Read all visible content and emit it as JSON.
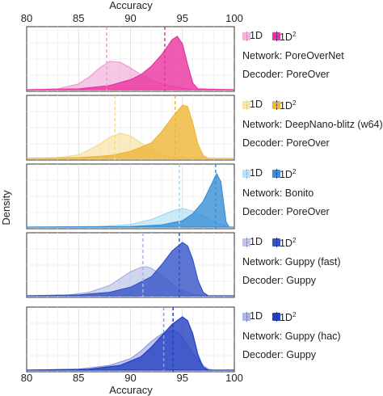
{
  "chart_data": {
    "type": "area",
    "x_axis": {
      "label": "Accuracy",
      "ticks": [
        80,
        85,
        90,
        95,
        100
      ],
      "range": [
        80,
        100
      ]
    },
    "y_axis": {
      "label": "Density"
    },
    "legend_labels": {
      "one_d": "1D",
      "one_d2_base": "1D",
      "one_d2_sup": "2"
    },
    "panels": [
      {
        "network_line": "Network: PoreOverNet",
        "decoder_line": "Decoder: PoreOver",
        "color_light": "#f19ad0",
        "color_dark": "#e8339e",
        "series": [
          {
            "name": "1D",
            "mean": 87.7,
            "points": [
              [
                80,
                0
              ],
              [
                83,
                0.01
              ],
              [
                85,
                0.07
              ],
              [
                86,
                0.15
              ],
              [
                87,
                0.26
              ],
              [
                88,
                0.34
              ],
              [
                89,
                0.33
              ],
              [
                90,
                0.26
              ],
              [
                91,
                0.18
              ],
              [
                92,
                0.12
              ],
              [
                93,
                0.07
              ],
              [
                94,
                0.04
              ],
              [
                95,
                0.02
              ],
              [
                96,
                0
              ],
              [
                100,
                0
              ]
            ]
          },
          {
            "name": "1D2",
            "mean": 93.3,
            "points": [
              [
                80,
                0
              ],
              [
                85,
                0.01
              ],
              [
                88,
                0.05
              ],
              [
                90,
                0.12
              ],
              [
                91,
                0.18
              ],
              [
                92,
                0.28
              ],
              [
                93,
                0.42
              ],
              [
                94,
                0.6
              ],
              [
                94.5,
                0.64
              ],
              [
                95,
                0.55
              ],
              [
                95.5,
                0.3
              ],
              [
                96,
                0.08
              ],
              [
                96.5,
                0.01
              ],
              [
                100,
                0
              ]
            ]
          }
        ]
      },
      {
        "network_line": "Network: DeepNano-blitz (w64)",
        "decoder_line": "Decoder: PoreOver",
        "color_light": "#f8db8c",
        "color_dark": "#efb536",
        "series": [
          {
            "name": "1D",
            "mean": 88.5,
            "points": [
              [
                80,
                0
              ],
              [
                83,
                0.01
              ],
              [
                85,
                0.05
              ],
              [
                86,
                0.12
              ],
              [
                87,
                0.2
              ],
              [
                88,
                0.3
              ],
              [
                89,
                0.36
              ],
              [
                90,
                0.32
              ],
              [
                91,
                0.22
              ],
              [
                92,
                0.12
              ],
              [
                93,
                0.05
              ],
              [
                94,
                0.02
              ],
              [
                95,
                0
              ],
              [
                100,
                0
              ]
            ]
          },
          {
            "name": "1D2",
            "mean": 94.3,
            "points": [
              [
                80,
                0
              ],
              [
                85,
                0.01
              ],
              [
                88,
                0.04
              ],
              [
                90,
                0.1
              ],
              [
                92,
                0.22
              ],
              [
                93,
                0.38
              ],
              [
                94,
                0.58
              ],
              [
                95,
                0.76
              ],
              [
                95.5,
                0.74
              ],
              [
                96,
                0.5
              ],
              [
                96.5,
                0.2
              ],
              [
                97,
                0.04
              ],
              [
                97.5,
                0
              ],
              [
                100,
                0
              ]
            ]
          }
        ]
      },
      {
        "network_line": "Network: Bonito",
        "decoder_line": "Decoder: PoreOver",
        "color_light": "#a3d8f3",
        "color_dark": "#3a8fd6",
        "series": [
          {
            "name": "1D",
            "mean": 94.7,
            "points": [
              [
                80,
                0
              ],
              [
                87,
                0.01
              ],
              [
                90,
                0.05
              ],
              [
                92,
                0.14
              ],
              [
                93,
                0.22
              ],
              [
                94,
                0.3
              ],
              [
                95,
                0.35
              ],
              [
                96,
                0.3
              ],
              [
                97,
                0.2
              ],
              [
                98,
                0.1
              ],
              [
                99,
                0.03
              ],
              [
                99.5,
                0
              ],
              [
                100,
                0
              ]
            ]
          },
          {
            "name": "1D2",
            "mean": 98.2,
            "points": [
              [
                80,
                0
              ],
              [
                90,
                0.01
              ],
              [
                93,
                0.04
              ],
              [
                95,
                0.12
              ],
              [
                96,
                0.25
              ],
              [
                97,
                0.48
              ],
              [
                97.8,
                0.8
              ],
              [
                98.3,
                1
              ],
              [
                98.7,
                0.85
              ],
              [
                99,
                0.4
              ],
              [
                99.2,
                0.1
              ],
              [
                99.5,
                0
              ],
              [
                100,
                0
              ]
            ]
          }
        ]
      },
      {
        "network_line": "Network: Guppy (fast)",
        "decoder_line": "Decoder: Guppy",
        "color_light": "#aab2e3",
        "color_dark": "#3454c8",
        "series": [
          {
            "name": "1D",
            "mean": 91.2,
            "points": [
              [
                80,
                0
              ],
              [
                84,
                0.01
              ],
              [
                86,
                0.04
              ],
              [
                88,
                0.12
              ],
              [
                89,
                0.2
              ],
              [
                90,
                0.28
              ],
              [
                91,
                0.33
              ],
              [
                91.5,
                0.34
              ],
              [
                92,
                0.32
              ],
              [
                93,
                0.24
              ],
              [
                94,
                0.14
              ],
              [
                95,
                0.06
              ],
              [
                96,
                0.02
              ],
              [
                97,
                0
              ],
              [
                100,
                0
              ]
            ]
          },
          {
            "name": "1D2",
            "mean": 94.7,
            "points": [
              [
                80,
                0
              ],
              [
                85,
                0.01
              ],
              [
                88,
                0.04
              ],
              [
                90,
                0.1
              ],
              [
                92,
                0.22
              ],
              [
                93,
                0.36
              ],
              [
                94,
                0.52
              ],
              [
                95,
                0.62
              ],
              [
                95.5,
                0.58
              ],
              [
                96,
                0.42
              ],
              [
                96.5,
                0.18
              ],
              [
                97,
                0.04
              ],
              [
                97.5,
                0
              ],
              [
                100,
                0
              ]
            ]
          }
        ]
      },
      {
        "network_line": "Network: Guppy (hac)",
        "decoder_line": "Decoder: Guppy",
        "color_light": "#8f9be0",
        "color_dark": "#2340c0",
        "series": [
          {
            "name": "1D",
            "mean": 93.2,
            "points": [
              [
                80,
                0
              ],
              [
                85,
                0.01
              ],
              [
                88,
                0.05
              ],
              [
                90,
                0.12
              ],
              [
                91,
                0.2
              ],
              [
                92,
                0.3
              ],
              [
                93,
                0.38
              ],
              [
                94,
                0.42
              ],
              [
                94.5,
                0.4
              ],
              [
                95,
                0.34
              ],
              [
                96,
                0.18
              ],
              [
                97,
                0.05
              ],
              [
                97.5,
                0.01
              ],
              [
                98,
                0
              ],
              [
                100,
                0
              ]
            ]
          },
          {
            "name": "1D2",
            "mean": 94.1,
            "points": [
              [
                80,
                0
              ],
              [
                86,
                0.01
              ],
              [
                89,
                0.05
              ],
              [
                91,
                0.14
              ],
              [
                92,
                0.24
              ],
              [
                93,
                0.36
              ],
              [
                94,
                0.48
              ],
              [
                95,
                0.56
              ],
              [
                95.5,
                0.52
              ],
              [
                96,
                0.38
              ],
              [
                96.5,
                0.16
              ],
              [
                97,
                0.03
              ],
              [
                97.5,
                0
              ],
              [
                100,
                0
              ]
            ]
          }
        ]
      }
    ]
  }
}
